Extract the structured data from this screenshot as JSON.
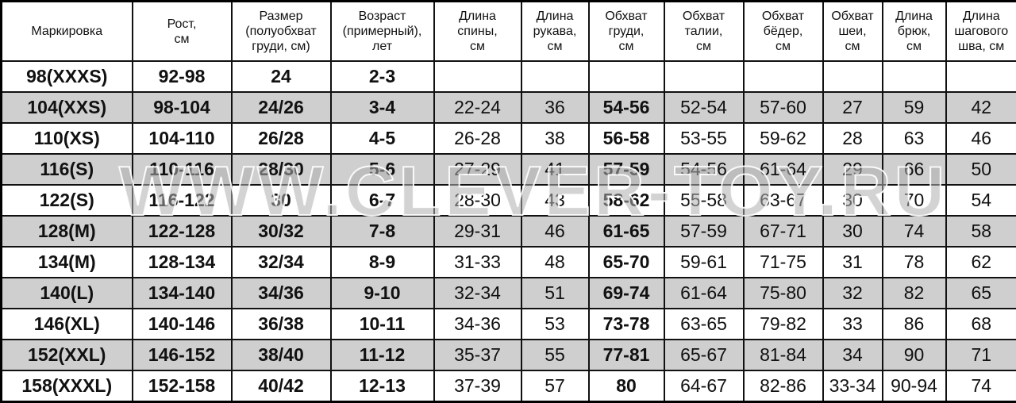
{
  "headers": [
    "Маркировка",
    "Рост,\nсм",
    "Размер\n(полуобхват\nгруди, см)",
    "Возраст\n(примерный),\nлет",
    "Длина\nспины,\nсм",
    "Длина\nрукава,\nсм",
    "Обхват\nгруди,\nсм",
    "Обхват\nталии,\nсм",
    "Обхват\nбёдер,\nсм",
    "Обхват\nшеи,\nсм",
    "Длина\nбрюк,\nсм",
    "Длина\nшагового\nшва, см"
  ],
  "bold_columns": [
    0,
    1,
    2,
    3,
    6
  ],
  "row_colors": {
    "odd": "#ffffff",
    "even": "#cfcfcf"
  },
  "rows": [
    [
      "98(XXXS)",
      "92-98",
      "24",
      "2-3",
      "",
      "",
      "",
      "",
      "",
      "",
      "",
      ""
    ],
    [
      "104(XXS)",
      "98-104",
      "24/26",
      "3-4",
      "22-24",
      "36",
      "54-56",
      "52-54",
      "57-60",
      "27",
      "59",
      "42"
    ],
    [
      "110(XS)",
      "104-110",
      "26/28",
      "4-5",
      "26-28",
      "38",
      "56-58",
      "53-55",
      "59-62",
      "28",
      "63",
      "46"
    ],
    [
      "116(S)",
      "110-116",
      "28/30",
      "5-6",
      "27-29",
      "41",
      "57-59",
      "54-56",
      "61-64",
      "29",
      "66",
      "50"
    ],
    [
      "122(S)",
      "116-122",
      "30",
      "6-7",
      "28-30",
      "43",
      "58-62",
      "55-58",
      "63-67",
      "30",
      "70",
      "54"
    ],
    [
      "128(M)",
      "122-128",
      "30/32",
      "7-8",
      "29-31",
      "46",
      "61-65",
      "57-59",
      "67-71",
      "30",
      "74",
      "58"
    ],
    [
      "134(M)",
      "128-134",
      "32/34",
      "8-9",
      "31-33",
      "48",
      "65-70",
      "59-61",
      "71-75",
      "31",
      "78",
      "62"
    ],
    [
      "140(L)",
      "134-140",
      "34/36",
      "9-10",
      "32-34",
      "51",
      "69-74",
      "61-64",
      "75-80",
      "32",
      "82",
      "65"
    ],
    [
      "146(XL)",
      "140-146",
      "36/38",
      "10-11",
      "34-36",
      "53",
      "73-78",
      "63-65",
      "79-82",
      "33",
      "86",
      "68"
    ],
    [
      "152(XXL)",
      "146-152",
      "38/40",
      "11-12",
      "35-37",
      "55",
      "77-81",
      "65-67",
      "81-84",
      "34",
      "90",
      "71"
    ],
    [
      "158(XXXL)",
      "152-158",
      "40/42",
      "12-13",
      "37-39",
      "57",
      "80",
      "64-67",
      "82-86",
      "33-34",
      "90-94",
      "74"
    ]
  ],
  "watermark": "WWW.CLEVER-TOY.RU"
}
